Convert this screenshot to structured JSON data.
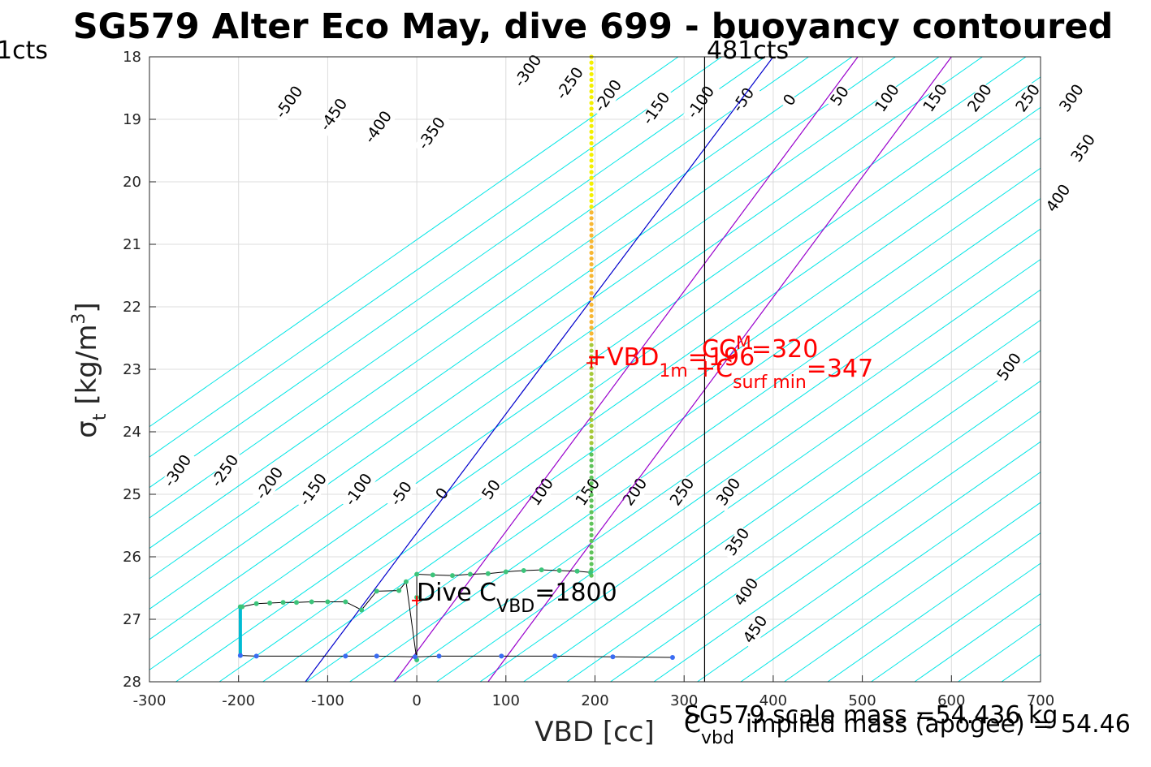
{
  "chart_data": {
    "type": "line",
    "title": "SG579 Alter Eco May, dive 699 - buoyancy contoured",
    "xlabel": "VBD [cc]",
    "ylabel_base": "σ",
    "ylabel_sub": "t",
    "ylabel_unit": " [kg/m",
    "ylabel_sup": "3",
    "ylabel_close": "]",
    "xlim": [
      -300,
      700
    ],
    "ylim": [
      18,
      28
    ],
    "y_reversed": true,
    "grid": true,
    "x_ticks": [
      -300,
      -200,
      -100,
      0,
      100,
      200,
      300,
      400,
      500,
      600,
      700
    ],
    "y_ticks": [
      18,
      19,
      20,
      21,
      22,
      23,
      24,
      25,
      26,
      27,
      28
    ],
    "contour_levels": [
      -500,
      -450,
      -400,
      -350,
      -300,
      -250,
      -200,
      -150,
      -100,
      -50,
      0,
      50,
      100,
      150,
      200,
      250,
      300,
      350,
      400,
      450,
      500
    ],
    "contour_color": "#00e5e5",
    "contour_labels_top": [
      {
        "text": "-500",
        "x": -150,
        "y": 19.0
      },
      {
        "text": "-450",
        "x": -100,
        "y": 19.2
      },
      {
        "text": "-400",
        "x": -50,
        "y": 19.4
      },
      {
        "text": "-350",
        "x": 10,
        "y": 19.5
      },
      {
        "text": "-300",
        "x": 118,
        "y": 18.5
      },
      {
        "text": "-250",
        "x": 165,
        "y": 18.7
      },
      {
        "text": "-200",
        "x": 208,
        "y": 18.9
      },
      {
        "text": "-150",
        "x": 262,
        "y": 19.1
      },
      {
        "text": "-100",
        "x": 312,
        "y": 19.0
      },
      {
        "text": "-50",
        "x": 363,
        "y": 18.9
      },
      {
        "text": "0",
        "x": 420,
        "y": 18.8
      },
      {
        "text": "50",
        "x": 473,
        "y": 18.8
      },
      {
        "text": "100",
        "x": 523,
        "y": 18.9
      },
      {
        "text": "150",
        "x": 577,
        "y": 18.9
      },
      {
        "text": "200",
        "x": 627,
        "y": 18.9
      },
      {
        "text": "250",
        "x": 681,
        "y": 18.9
      },
      {
        "text": "300",
        "x": 730,
        "y": 18.9
      },
      {
        "text": "350",
        "x": 743,
        "y": 19.7
      },
      {
        "text": "400",
        "x": 715,
        "y": 20.5
      },
      {
        "text": "500",
        "x": 660,
        "y": 23.2
      }
    ],
    "contour_labels_bottom": [
      {
        "text": "-300",
        "x": -275,
        "y": 24.9
      },
      {
        "text": "-250",
        "x": -222,
        "y": 24.9
      },
      {
        "text": "-200",
        "x": -172,
        "y": 25.1
      },
      {
        "text": "-150",
        "x": -123,
        "y": 25.2
      },
      {
        "text": "-100",
        "x": -72,
        "y": 25.2
      },
      {
        "text": "-50",
        "x": -21,
        "y": 25.2
      },
      {
        "text": "0",
        "x": 30,
        "y": 25.1
      },
      {
        "text": "50",
        "x": 82,
        "y": 25.1
      },
      {
        "text": "100",
        "x": 135,
        "y": 25.2
      },
      {
        "text": "150",
        "x": 187,
        "y": 25.2
      },
      {
        "text": "200",
        "x": 240,
        "y": 25.2
      },
      {
        "text": "250",
        "x": 293,
        "y": 25.2
      },
      {
        "text": "300",
        "x": 345,
        "y": 25.2
      },
      {
        "text": "350",
        "x": 355,
        "y": 26.0
      },
      {
        "text": "400",
        "x": 365,
        "y": 26.8
      },
      {
        "text": "450",
        "x": 375,
        "y": 27.4
      }
    ],
    "lines": {
      "blue": {
        "color": "#0000cc",
        "x": [
          -125,
          400
        ],
        "y": [
          28,
          18
        ]
      },
      "purple_1": {
        "color": "#9900cc",
        "x": [
          -25,
          495
        ],
        "y": [
          28,
          18
        ]
      },
      "purple_2": {
        "color": "#9900cc",
        "x": [
          80,
          600
        ],
        "y": [
          28,
          18
        ]
      },
      "vertical_481cts": {
        "color": "#000000",
        "x": [
          323,
          323
        ],
        "y": [
          18,
          28
        ]
      }
    },
    "profile_black": {
      "color": "#000000",
      "x": [
        -198,
        -200,
        -198,
        -180,
        -165,
        -150,
        -135,
        -120,
        -100,
        -80,
        -62,
        -45,
        -20,
        -10,
        0,
        0,
        0,
        10,
        25,
        45,
        70,
        95,
        120,
        150,
        175,
        195,
        196,
        196,
        196,
        197,
        198
      ],
      "y": [
        26.8,
        27.5,
        27.6,
        27.6,
        27.6,
        27.6,
        27.6,
        27.6,
        27.6,
        27.6,
        27.6,
        27.6,
        27.6,
        27.6,
        27.6,
        27.6,
        27.6,
        27.6,
        27.6,
        27.6,
        27.6,
        27.6,
        27.6,
        27.6,
        27.6,
        27.6,
        27.6,
        27.6,
        27.6,
        27.6,
        27.6
      ]
    },
    "profile_dive": {
      "x": [
        -198,
        -196,
        -180,
        -165,
        -150,
        -135,
        -118,
        -100,
        -80,
        -62,
        -45,
        -20,
        -12,
        0,
        0,
        0,
        18,
        40,
        60,
        80,
        100,
        120,
        140,
        160,
        180,
        195
      ],
      "y": [
        26.8,
        26.8,
        26.75,
        26.74,
        26.73,
        26.73,
        26.72,
        26.72,
        26.72,
        26.85,
        26.55,
        26.54,
        26.4,
        27.65,
        26.65,
        26.28,
        26.29,
        26.3,
        26.28,
        26.27,
        26.24,
        26.22,
        26.21,
        26.22,
        26.23,
        26.25
      ]
    },
    "profile_climb": {
      "x": [
        -198,
        -180,
        -80,
        -45,
        -2,
        25,
        95,
        155,
        220,
        287
      ],
      "y": [
        27.58,
        27.59,
        27.59,
        27.59,
        27.6,
        27.59,
        27.59,
        27.59,
        27.6,
        27.61
      ]
    },
    "vertical_profile": {
      "x": 196,
      "y_from": 18,
      "y_to": 26.3
    },
    "annotations": {
      "top_left_cts": "1cts",
      "top_right_cts": "481cts",
      "vbd_1m_label": "+VBD",
      "vbd_1m_sub": "1m",
      "vbd_1m_value": "=196",
      "c_vbd_surf_label": "+C",
      "c_vbd_surf_sub": "surf min",
      "c_vbd_surf_value": "=347",
      "cc_label": "CC",
      "cc_value": "=320",
      "cc_sup": "M",
      "dive_cvbd_label": "Dive C",
      "dive_cvbd_sub": "VBD",
      "dive_cvbd_value": "=1800",
      "scale_mass": "SG579 scale mass =54.436 kg",
      "c_vbd_prefix": "C",
      "c_vbd_prefix_sub": "vbd",
      "implied_mass": "implied mass (apogee) = 54.46"
    },
    "marker_vbd_1m": {
      "x": 196,
      "y": 22.9
    },
    "marker_surf": {
      "x": 323,
      "y": 22.9
    },
    "marker_dive": {
      "x": 0,
      "y": 26.7
    }
  }
}
